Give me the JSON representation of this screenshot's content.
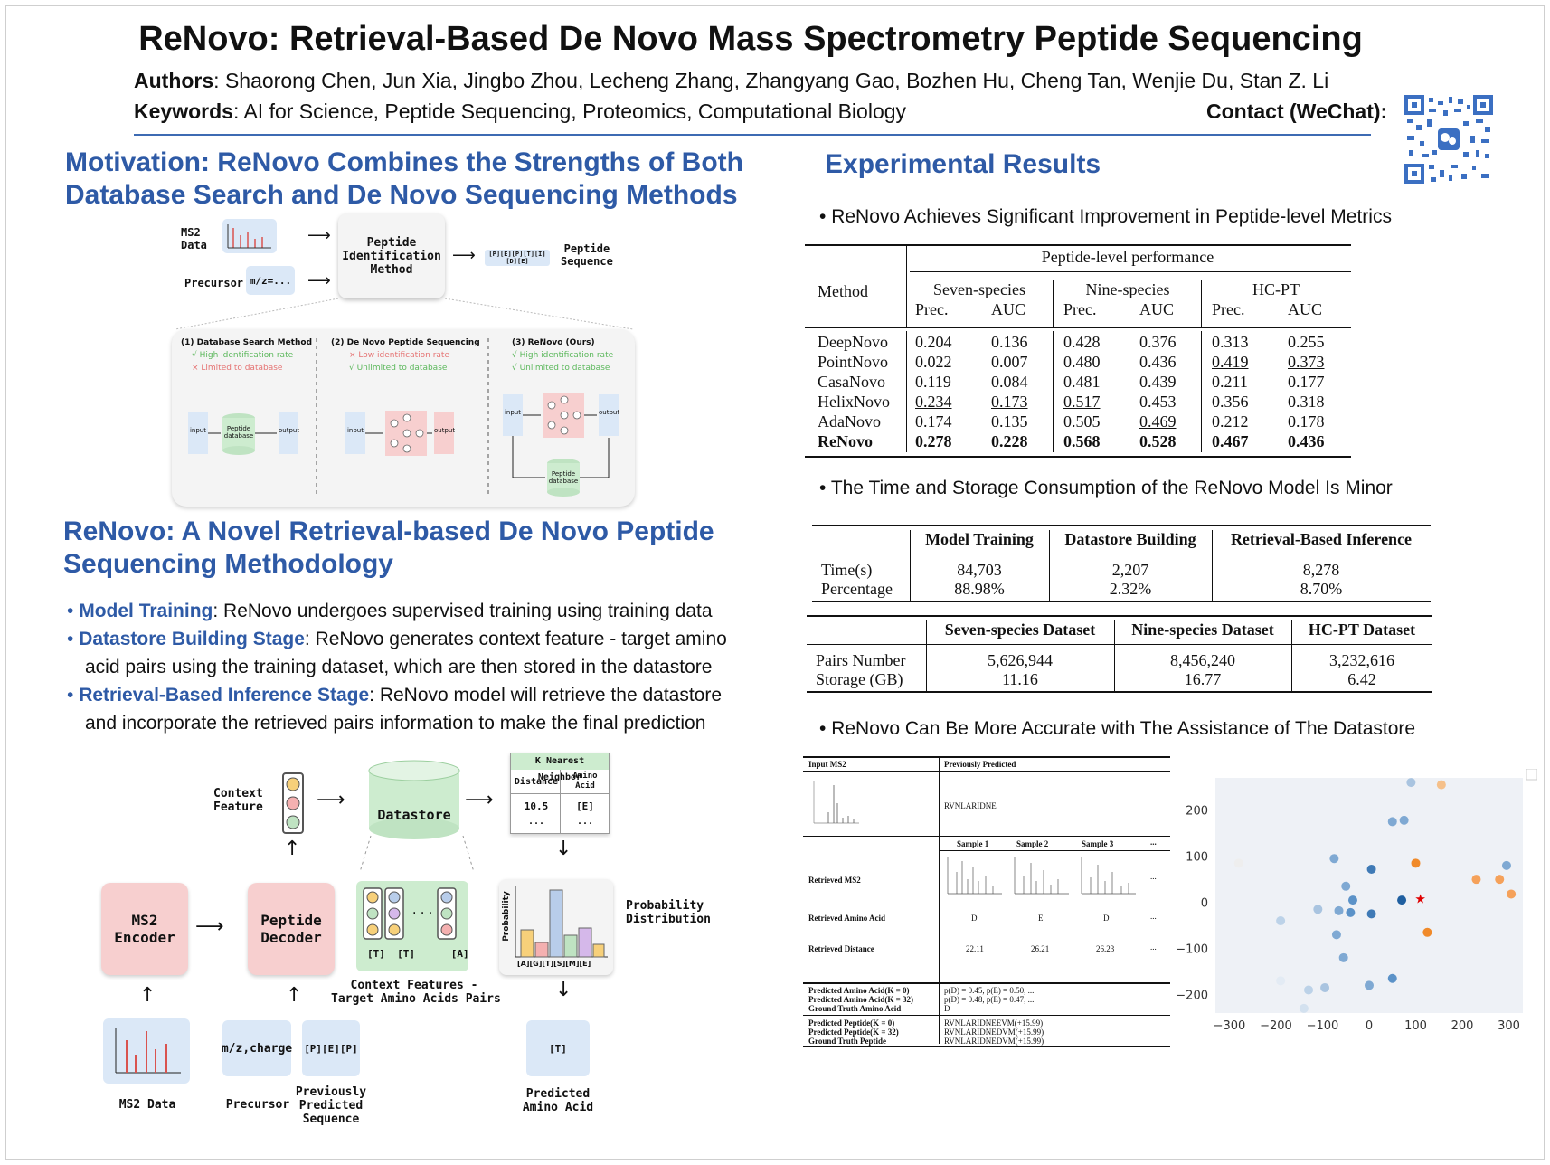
{
  "header": {
    "title": "ReNovo: Retrieval-Based De Novo Mass Spectrometry Peptide Sequencing",
    "authors_label": "Authors",
    "authors": ": Shaorong Chen, Jun Xia, Jingbo Zhou, Lecheng Zhang, Zhangyang Gao, Bozhen Hu, Cheng Tan, Wenjie Du, Stan Z. Li",
    "keywords_label": "Keywords",
    "keywords": ": AI for Science, Peptide Sequencing, Proteomics, Computational Biology",
    "contact": "Contact (WeChat):"
  },
  "motivation": {
    "title_line1": "Motivation: ReNovo Combines the Strengths of Both",
    "title_line2": "Database Search and De Novo Sequencing Methods",
    "fig": {
      "ms2": "MS2\nData",
      "precursor": "Precursor",
      "mz": "m/z=...",
      "method": "Peptide\nIdentification\nMethod",
      "seq_box": "[P][E][P][T][I][D][E]",
      "seq_label": "Peptide\nSequence",
      "p1_title": "(1) Database Search Method",
      "p1_pro": "√ High identification rate",
      "p1_con": "× Limited to database",
      "p2_title": "(2) De Novo Peptide Sequencing",
      "p2_con": "× Low identification rate",
      "p2_pro": "√ Unlimited to database",
      "p3_title": "(3) ReNovo (Ours)",
      "p3_pro1": "√ High identification rate",
      "p3_pro2": "√ Unlimited to database",
      "input": "input",
      "output": "output",
      "db": "Peptide\ndatabase"
    }
  },
  "method": {
    "title_line1": "ReNovo: A Novel Retrieval-based De Novo Peptide",
    "title_line2": "Sequencing Methodology",
    "bullets": [
      {
        "head": "Model Training",
        "text": ": ReNovo undergoes supervised training using training data"
      },
      {
        "head": "Datastore Building Stage",
        "text": ": ReNovo generates context feature - target amino",
        "cont": "acid pairs using the training dataset, which are then stored in the datastore"
      },
      {
        "head": "Retrieval-Based Inference Stage",
        "text": ": ReNovo model will retrieve the datastore",
        "cont": "and incorporate the retrieved pairs information to make the final prediction"
      }
    ],
    "fig": {
      "context_feature": "Context\nFeature",
      "datastore": "Datastore",
      "knn_title": "K Nearest Neighbor",
      "knn_dist": "Distance",
      "knn_aa": "Amino\nAcid",
      "knn_d_val": "10.5",
      "knn_aa_val": "[E]",
      "knn_more": "...",
      "ms2_encoder": "MS2\nEncoder",
      "peptide_decoder": "Peptide\nDecoder",
      "pairs_labels": "[T]  [T]      [A]",
      "pairs_caption": "Context Features -\nTarget Amino Acids Pairs",
      "prob_axis": "Probability",
      "prob_x": "[A][G][T][S][M][E]",
      "prob_label": "Probability\nDistribution",
      "ms2_data": "MS2 Data",
      "mz_charge": "m/z,charge",
      "ppp": "[P][E][P]",
      "precursor": "Precursor",
      "prev_pred": "Previously\nPredicted\nSequence",
      "pred_box": "[T]",
      "pred_label": "Predicted\nAmino Acid"
    }
  },
  "results": {
    "title": "Experimental Results",
    "b1": "ReNovo Achieves Significant Improvement in Peptide-level Metrics",
    "table1": {
      "group_header": "Peptide-level performance",
      "method_header": "Method",
      "datasets": [
        "Seven-species",
        "Nine-species",
        "HC-PT"
      ],
      "metrics": [
        "Prec.",
        "AUC"
      ],
      "rows": [
        {
          "m": "DeepNovo",
          "v": [
            "0.204",
            "0.136",
            "0.428",
            "0.376",
            "0.313",
            "0.255"
          ]
        },
        {
          "m": "PointNovo",
          "v": [
            "0.022",
            "0.007",
            "0.480",
            "0.436",
            "0.419",
            "0.373"
          ]
        },
        {
          "m": "CasaNovo",
          "v": [
            "0.119",
            "0.084",
            "0.481",
            "0.439",
            "0.211",
            "0.177"
          ]
        },
        {
          "m": "HelixNovo",
          "v": [
            "0.234",
            "0.173",
            "0.517",
            "0.453",
            "0.356",
            "0.318"
          ]
        },
        {
          "m": "AdaNovo",
          "v": [
            "0.174",
            "0.135",
            "0.505",
            "0.469",
            "0.212",
            "0.178"
          ]
        },
        {
          "m": "ReNovo",
          "v": [
            "0.278",
            "0.228",
            "0.568",
            "0.528",
            "0.467",
            "0.436"
          ]
        }
      ]
    },
    "b2": "The Time and Storage Consumption of the ReNovo Model Is Minor",
    "table2": {
      "headers": [
        "Model Training",
        "Datastore Building",
        "Retrieval-Based Inference"
      ],
      "rows": [
        {
          "m": "Time(s)",
          "v": [
            "84,703",
            "2,207",
            "8,278"
          ]
        },
        {
          "m": "Percentage",
          "v": [
            "88.98%",
            "2.32%",
            "8.70%"
          ]
        }
      ]
    },
    "table3": {
      "headers": [
        "Seven-species Dataset",
        "Nine-species Dataset",
        "HC-PT Dataset"
      ],
      "rows": [
        {
          "m": "Pairs Number",
          "v": [
            "5,626,944",
            "8,456,240",
            "3,232,616"
          ]
        },
        {
          "m": "Storage (GB)",
          "v": [
            "11.16",
            "16.77",
            "6.42"
          ]
        }
      ]
    },
    "b3": "ReNovo Can Be More Accurate with The Assistance of The Datastore",
    "case": {
      "input_ms2": "Input MS2",
      "prev_pred": "Previously Predicted",
      "prev_seq": "RVNLARIDNE",
      "samples": [
        "Sample 1",
        "Sample 2",
        "Sample 3"
      ],
      "ellipsis": "...",
      "retrieved_ms2": "Retrieved MS2",
      "retrieved_aa": "Retrieved Amino Acid",
      "aa_vals": [
        "D",
        "E",
        "D"
      ],
      "retrieved_dist": "Retrieved Distance",
      "dist_vals": [
        "22.11",
        "26.21",
        "26.23"
      ],
      "pa0": "Predicted Amino Acid(K = 0)",
      "pa0_v": "p(D) = 0.45, p(E) = 0.50, ...",
      "pa32": "Predicted Amino Acid(K = 32)",
      "pa32_v": "p(D) = 0.48, p(E) = 0.47, ...",
      "gta": "Ground Truth Amino Acid",
      "gta_v": "D",
      "pp0": "Predicted Peptide(K = 0)",
      "pp0_v": "RVNLARIDNEEVM(+15.99)",
      "pp32": "Predicted Peptide(K = 32)",
      "pp32_v": "RVNLARIDNEDVM(+15.99)",
      "gtp": "Ground Truth Peptide",
      "gtp_v": "RVNLARIDNEDVM(+15.99)"
    },
    "scatter": {
      "type": "scatter",
      "xlim": [
        -330,
        330
      ],
      "ylim": [
        -240,
        270
      ],
      "xticks": [
        -300,
        -200,
        -100,
        0,
        100,
        200,
        300
      ],
      "yticks": [
        200,
        100,
        0,
        -100,
        -200
      ],
      "xtick_labels": [
        "−300",
        "−200",
        "−100",
        "0",
        "100",
        "200",
        "300"
      ],
      "ytick_labels": [
        "200",
        "100",
        "0",
        "−100",
        "−200"
      ],
      "points": [
        {
          "x": 90,
          "y": 260,
          "c": "#a9c4e0"
        },
        {
          "x": 155,
          "y": 255,
          "c": "#f5c08a"
        },
        {
          "x": -280,
          "y": 85,
          "c": "#eeeeee"
        },
        {
          "x": 50,
          "y": 175,
          "c": "#7fa9d3"
        },
        {
          "x": 75,
          "y": 178,
          "c": "#7fa9d3"
        },
        {
          "x": -75,
          "y": 95,
          "c": "#7fa9d3"
        },
        {
          "x": 5,
          "y": 72,
          "c": "#3f7ab6"
        },
        {
          "x": 100,
          "y": 85,
          "c": "#f08a2a"
        },
        {
          "x": 295,
          "y": 80,
          "c": "#7fa9d3"
        },
        {
          "x": 230,
          "y": 50,
          "c": "#f5a15a"
        },
        {
          "x": 280,
          "y": 50,
          "c": "#f5a15a"
        },
        {
          "x": 305,
          "y": 18,
          "c": "#f5a15a"
        },
        {
          "x": -50,
          "y": 35,
          "c": "#7fa9d3"
        },
        {
          "x": -35,
          "y": 5,
          "c": "#5b92c8"
        },
        {
          "x": -110,
          "y": -15,
          "c": "#a9c4e0"
        },
        {
          "x": -65,
          "y": -18,
          "c": "#7fa9d3"
        },
        {
          "x": -40,
          "y": -22,
          "c": "#5b92c8"
        },
        {
          "x": 5,
          "y": -25,
          "c": "#3f7ab6"
        },
        {
          "x": 70,
          "y": 5,
          "c": "#1f5fa0"
        },
        {
          "x": 125,
          "y": -65,
          "c": "#f08a2a"
        },
        {
          "x": -190,
          "y": -40,
          "c": "#bcd2e8"
        },
        {
          "x": -70,
          "y": -70,
          "c": "#7fa9d3"
        },
        {
          "x": -55,
          "y": -120,
          "c": "#7fa9d3"
        },
        {
          "x": -190,
          "y": -170,
          "c": "#e3ebf4"
        },
        {
          "x": -130,
          "y": -190,
          "c": "#bcd2e8"
        },
        {
          "x": -95,
          "y": -185,
          "c": "#a9c4e0"
        },
        {
          "x": 0,
          "y": -180,
          "c": "#7fa9d3"
        },
        {
          "x": 50,
          "y": -165,
          "c": "#5b92c8"
        },
        {
          "x": -140,
          "y": -230,
          "c": "#d3e1ef"
        }
      ],
      "star": {
        "x": 110,
        "y": 8,
        "c": "#e00000"
      }
    }
  }
}
